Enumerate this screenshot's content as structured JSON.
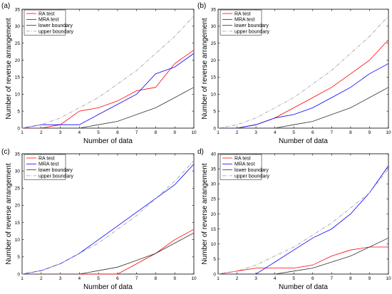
{
  "chart_data": [
    {
      "type": "line",
      "panel_label": "(a)",
      "xlabel": "Number of data",
      "ylabel": "Number of reverse arrangement",
      "xlim": [
        1,
        10
      ],
      "ylim": [
        0,
        35
      ],
      "xticks": [
        1,
        2,
        3,
        4,
        5,
        6,
        7,
        8,
        9,
        10
      ],
      "yticks": [
        0,
        5,
        10,
        15,
        20,
        25,
        30,
        35
      ],
      "legend_position": "top-left",
      "series": [
        {
          "name": "RA test",
          "color": "#ff0000",
          "dash": "solid",
          "x": [
            1,
            2,
            3,
            4,
            5,
            6,
            7,
            8,
            9,
            10
          ],
          "y": [
            0,
            0,
            1,
            5,
            6,
            8,
            11,
            12,
            19,
            23
          ]
        },
        {
          "name": "MRA test",
          "color": "#0000ff",
          "dash": "solid",
          "x": [
            1,
            2,
            3,
            4,
            5,
            6,
            7,
            8,
            9,
            10
          ],
          "y": [
            0,
            1,
            1,
            1,
            4,
            7,
            10,
            16,
            18,
            22
          ]
        },
        {
          "name": "lower boundary",
          "color": "#333333",
          "dash": "solid",
          "x": [
            1,
            2,
            3,
            4,
            5,
            6,
            7,
            8,
            9,
            10
          ],
          "y": [
            0,
            0,
            0,
            0,
            1,
            2,
            4,
            6,
            9,
            12
          ]
        },
        {
          "name": "upper boundary",
          "color": "#999999",
          "dash": "dashdot",
          "x": [
            1,
            2,
            3,
            4,
            5,
            6,
            7,
            8,
            9,
            10
          ],
          "y": [
            0,
            1,
            3,
            6,
            9,
            13,
            17,
            22,
            27,
            33
          ]
        }
      ]
    },
    {
      "type": "line",
      "panel_label": "(b)",
      "xlabel": "Number of data",
      "ylabel": "Number of reverse arrangement",
      "xlim": [
        1,
        10
      ],
      "ylim": [
        0,
        35
      ],
      "xticks": [
        1,
        2,
        3,
        4,
        5,
        6,
        7,
        8,
        9,
        10
      ],
      "yticks": [
        0,
        5,
        10,
        15,
        20,
        25,
        30,
        35
      ],
      "legend_position": "top-left",
      "series": [
        {
          "name": "RA test",
          "color": "#ff0000",
          "dash": "solid",
          "x": [
            1,
            2,
            3,
            4,
            5,
            6,
            7,
            8,
            9,
            10
          ],
          "y": [
            0,
            0,
            1,
            3,
            6,
            9,
            12,
            16,
            20,
            26
          ]
        },
        {
          "name": "MRA test",
          "color": "#0000ff",
          "dash": "solid",
          "x": [
            1,
            2,
            3,
            4,
            5,
            6,
            7,
            8,
            9,
            10
          ],
          "y": [
            0,
            0,
            1,
            3,
            4,
            6,
            9,
            12,
            16,
            19
          ]
        },
        {
          "name": "lower boundary",
          "color": "#333333",
          "dash": "solid",
          "x": [
            1,
            2,
            3,
            4,
            5,
            6,
            7,
            8,
            9,
            10
          ],
          "y": [
            0,
            0,
            0,
            0,
            1,
            2,
            4,
            6,
            9,
            12
          ]
        },
        {
          "name": "upper boundary",
          "color": "#999999",
          "dash": "dashdot",
          "x": [
            1,
            2,
            3,
            4,
            5,
            6,
            7,
            8,
            9,
            10
          ],
          "y": [
            0,
            1,
            3,
            6,
            9,
            13,
            17,
            22,
            27,
            33
          ]
        }
      ]
    },
    {
      "type": "line",
      "panel_label": "(c)",
      "xlabel": "Number of data",
      "ylabel": "Number of reverse arrangement",
      "xlim": [
        1,
        10
      ],
      "ylim": [
        0,
        35
      ],
      "xticks": [
        1,
        2,
        3,
        4,
        5,
        6,
        7,
        8,
        9,
        10
      ],
      "yticks": [
        0,
        5,
        10,
        15,
        20,
        25,
        30,
        35
      ],
      "legend_position": "top-left",
      "series": [
        {
          "name": "RA test",
          "color": "#ff0000",
          "dash": "solid",
          "x": [
            1,
            2,
            3,
            4,
            5,
            6,
            7,
            8,
            9,
            10
          ],
          "y": [
            0,
            0,
            0,
            0,
            0,
            0,
            3,
            6,
            10,
            13
          ]
        },
        {
          "name": "MRA test",
          "color": "#0000ff",
          "dash": "solid",
          "x": [
            1,
            2,
            3,
            4,
            5,
            6,
            7,
            8,
            9,
            10
          ],
          "y": [
            0,
            1,
            3,
            6,
            10,
            14,
            18,
            22,
            26,
            32
          ]
        },
        {
          "name": "lower boundary",
          "color": "#333333",
          "dash": "solid",
          "x": [
            1,
            2,
            3,
            4,
            5,
            6,
            7,
            8,
            9,
            10
          ],
          "y": [
            0,
            0,
            0,
            0,
            1,
            2,
            4,
            6,
            9,
            12
          ]
        },
        {
          "name": "upper boundary",
          "color": "#999999",
          "dash": "dashdot",
          "x": [
            1,
            2,
            3,
            4,
            5,
            6,
            7,
            8,
            9,
            10
          ],
          "y": [
            0,
            1,
            3,
            6,
            9,
            13,
            17,
            22,
            27,
            33
          ]
        }
      ]
    },
    {
      "type": "line",
      "panel_label": "d)",
      "xlabel": "Number of data",
      "ylabel": "Number of reverse arrangement",
      "xlim": [
        1,
        10
      ],
      "ylim": [
        0,
        40
      ],
      "xticks": [
        1,
        2,
        3,
        4,
        5,
        6,
        7,
        8,
        9,
        10
      ],
      "yticks": [
        0,
        5,
        10,
        15,
        20,
        25,
        30,
        35,
        40
      ],
      "legend_position": "top-left",
      "series": [
        {
          "name": "RA test",
          "color": "#ff0000",
          "dash": "solid",
          "x": [
            1,
            2,
            3,
            4,
            5,
            6,
            7,
            8,
            9,
            10
          ],
          "y": [
            0,
            1,
            2,
            2,
            2,
            3,
            6,
            8,
            9,
            9
          ]
        },
        {
          "name": "MRA test",
          "color": "#0000ff",
          "dash": "solid",
          "x": [
            1,
            2,
            3,
            4,
            5,
            6,
            7,
            8,
            9,
            10
          ],
          "y": [
            0,
            0,
            0,
            4,
            8,
            12,
            15,
            20,
            27,
            36
          ]
        },
        {
          "name": "lower boundary",
          "color": "#333333",
          "dash": "solid",
          "x": [
            1,
            2,
            3,
            4,
            5,
            6,
            7,
            8,
            9,
            10
          ],
          "y": [
            0,
            0,
            0,
            0,
            1,
            2,
            4,
            6,
            9,
            12
          ]
        },
        {
          "name": "upper boundary",
          "color": "#999999",
          "dash": "dashdot",
          "x": [
            1,
            2,
            3,
            4,
            5,
            6,
            7,
            8,
            9,
            10
          ],
          "y": [
            0,
            1,
            3,
            6,
            9,
            13,
            17,
            22,
            27,
            35
          ]
        }
      ]
    }
  ]
}
